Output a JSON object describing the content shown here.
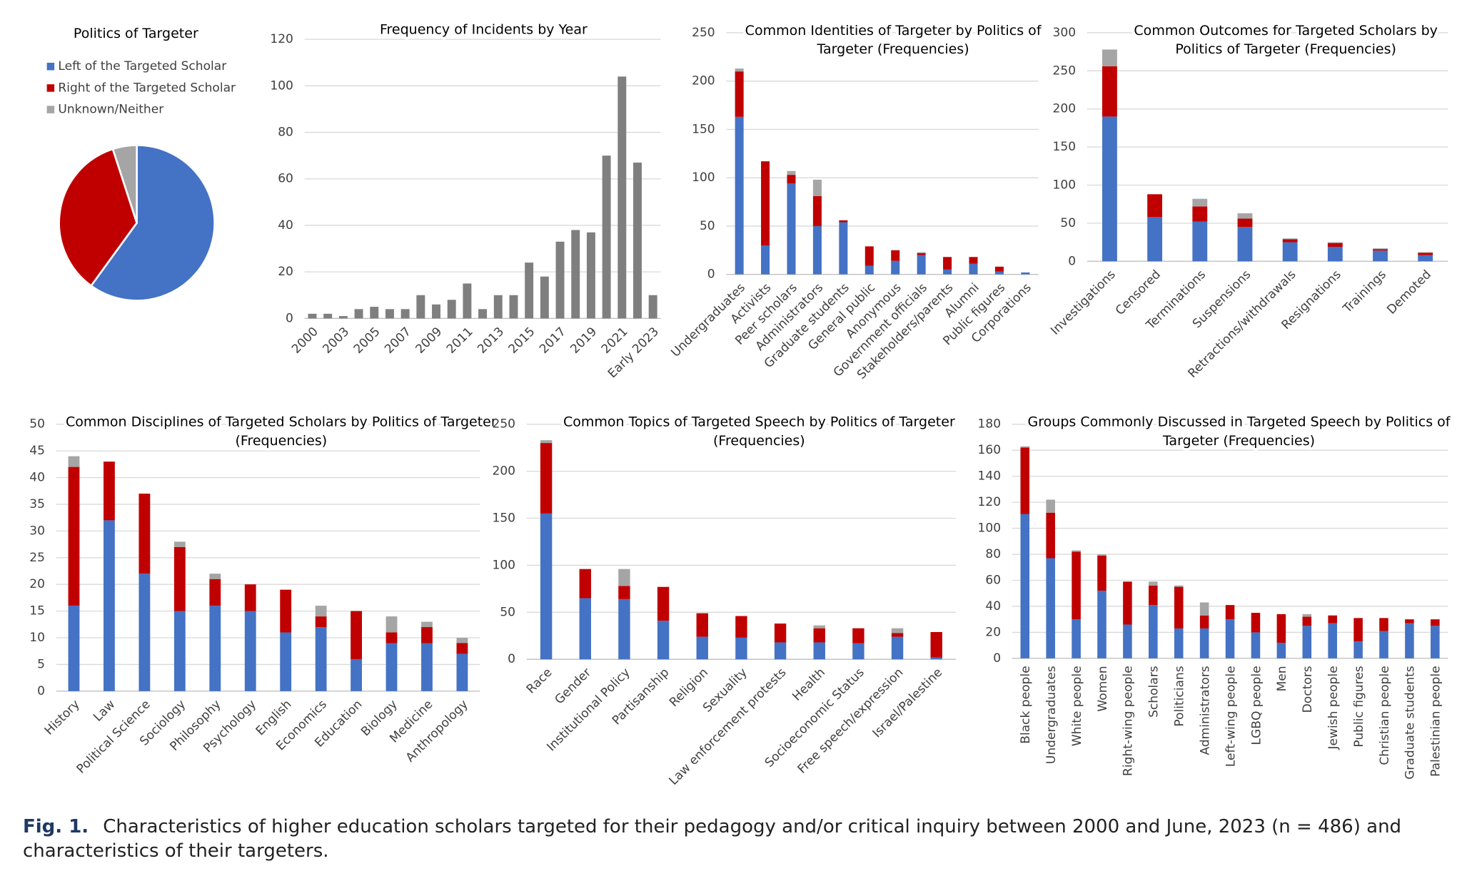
{
  "chart_data": [
    {
      "type": "pie",
      "title": "Politics of Targeter",
      "categories": [
        "Left of the Targeted Scholar",
        "Right of the Targeted Scholar",
        "Unknown/Neither"
      ],
      "values": [
        60,
        35,
        5
      ],
      "colors": [
        "#4472c4",
        "#c00000",
        "#a5a5a5"
      ]
    },
    {
      "type": "bar",
      "title": [
        "Frequency of Incidents by Year"
      ],
      "categories": [
        "2000",
        null,
        "2003",
        null,
        "2005",
        null,
        "2007",
        null,
        "2009",
        null,
        "2011",
        null,
        "2013",
        null,
        "2015",
        null,
        "2017",
        null,
        "2019",
        null,
        "2021",
        null,
        "Early 2023"
      ],
      "values": [
        2,
        2,
        1,
        4,
        5,
        4,
        4,
        10,
        6,
        8,
        15,
        4,
        10,
        10,
        24,
        18,
        33,
        38,
        37,
        70,
        104,
        67,
        10
      ],
      "color": "#7f7f7f",
      "ylim": [
        0,
        120
      ],
      "yticks": [
        0,
        20,
        40,
        60,
        80,
        100,
        120
      ],
      "grid": true
    },
    {
      "type": "stacked_bar",
      "title": [
        "Common Identities of Targeter by Politics of",
        "Targeter  (Frequencies)"
      ],
      "categories": [
        "Undergraduates",
        "Activists",
        "Peer scholars",
        "Administrators",
        "Graduate students",
        "General public",
        "Anonymous",
        "Government officials",
        "Stakeholders/parents",
        "Alumni",
        "Public figures",
        "Corporations"
      ],
      "series": [
        {
          "color": "#4472c4",
          "values": [
            163,
            30,
            94,
            50,
            54,
            9,
            14,
            20,
            5,
            11,
            3,
            2
          ]
        },
        {
          "color": "#c00000",
          "values": [
            47,
            87,
            9,
            31,
            2,
            20,
            11,
            2,
            13,
            7,
            5,
            0
          ]
        },
        {
          "color": "#a5a5a5",
          "values": [
            3,
            0,
            4,
            17,
            0,
            0,
            0,
            1,
            0,
            0,
            0,
            0
          ]
        }
      ],
      "ylim": [
        0,
        250
      ],
      "yticks": [
        0,
        50,
        100,
        150,
        200,
        250
      ],
      "grid": true
    },
    {
      "type": "stacked_bar",
      "title": [
        "Common Outcomes for Targeted Scholars by",
        "Politics of Targeter  (Frequencies)"
      ],
      "categories": [
        "Investigations",
        "Censored",
        "Terminations",
        "Suspensions",
        "Retractions/withdrawals",
        "Resignations",
        "Trainings",
        "Demoted"
      ],
      "series": [
        {
          "color": "#4472c4",
          "values": [
            190,
            58,
            52,
            45,
            25,
            19,
            14,
            8
          ]
        },
        {
          "color": "#c00000",
          "values": [
            66,
            30,
            20,
            11,
            4,
            5,
            2,
            3
          ]
        },
        {
          "color": "#a5a5a5",
          "values": [
            22,
            0,
            10,
            7,
            1,
            1,
            1,
            1
          ]
        }
      ],
      "ylim": [
        0,
        300
      ],
      "yticks": [
        0,
        50,
        100,
        150,
        200,
        250,
        300
      ],
      "grid": true
    },
    {
      "type": "stacked_bar",
      "title": [
        "Common Disciplines of Targeted Scholars by Politics of Targeter",
        "(Frequencies)"
      ],
      "categories": [
        "History",
        "Law",
        "Political Science",
        "Sociology",
        "Philosophy",
        "Psychology",
        "English",
        "Economics",
        "Education",
        "Biology",
        "Medicine",
        "Anthropology"
      ],
      "series": [
        {
          "color": "#4472c4",
          "values": [
            16,
            32,
            22,
            15,
            16,
            15,
            11,
            12,
            6,
            9,
            9,
            7
          ]
        },
        {
          "color": "#c00000",
          "values": [
            26,
            11,
            15,
            12,
            5,
            5,
            8,
            2,
            9,
            2,
            3,
            2
          ]
        },
        {
          "color": "#a5a5a5",
          "values": [
            2,
            0,
            0,
            1,
            1,
            0,
            0,
            2,
            0,
            3,
            1,
            1
          ]
        }
      ],
      "ylim": [
        0,
        50
      ],
      "yticks": [
        0,
        5,
        10,
        15,
        20,
        25,
        30,
        35,
        40,
        45,
        50
      ],
      "grid": true
    },
    {
      "type": "stacked_bar",
      "title": [
        "Common Topics of Targeted Speech by Politics of Targeter",
        "(Frequencies)"
      ],
      "categories": [
        "Race",
        "Gender",
        "Institutional Policy",
        "Partisanship",
        "Religion",
        "Sexuality",
        "Law enforcement protests",
        "Health",
        "Socioeconomic Status",
        "Free speech/expression",
        "Israel/Palestine"
      ],
      "series": [
        {
          "color": "#4472c4",
          "values": [
            155,
            65,
            64,
            41,
            24,
            23,
            18,
            18,
            17,
            24,
            2
          ]
        },
        {
          "color": "#c00000",
          "values": [
            75,
            31,
            14,
            36,
            25,
            23,
            20,
            15,
            16,
            4,
            27
          ]
        },
        {
          "color": "#a5a5a5",
          "values": [
            3,
            0,
            18,
            0,
            0,
            0,
            0,
            3,
            0,
            5,
            0
          ]
        }
      ],
      "ylim": [
        0,
        250
      ],
      "yticks": [
        0,
        50,
        100,
        150,
        200,
        250
      ],
      "grid": true
    },
    {
      "type": "stacked_bar",
      "title": [
        "Groups Commonly Discussed in Targeted Speech by Politics of",
        "Targeter  (Frequencies)"
      ],
      "categories": [
        "Black people",
        "Undergraduates",
        "White people",
        "Women",
        "Right-wing people",
        "Scholars",
        "Politicians",
        "Administrators",
        "Left-wing people",
        "LGBQ people",
        "Men",
        "Doctors",
        "Jewish people",
        "Public figures",
        "Christian people",
        "Graduate students",
        "Palestinian people"
      ],
      "series": [
        {
          "color": "#4472c4",
          "values": [
            111,
            77,
            30,
            52,
            26,
            41,
            23,
            23,
            30,
            20,
            12,
            25,
            27,
            13,
            21,
            27,
            25
          ]
        },
        {
          "color": "#c00000",
          "values": [
            51,
            35,
            52,
            27,
            33,
            15,
            32,
            10,
            11,
            15,
            22,
            7,
            6,
            18,
            10,
            3,
            5
          ]
        },
        {
          "color": "#a5a5a5",
          "values": [
            1,
            10,
            1,
            1,
            0,
            3,
            1,
            10,
            0,
            0,
            0,
            2,
            0,
            0,
            0,
            0,
            0
          ]
        }
      ],
      "ylim": [
        0,
        180
      ],
      "yticks": [
        0,
        20,
        40,
        60,
        80,
        100,
        120,
        140,
        160,
        180
      ],
      "grid": true
    }
  ],
  "caption": {
    "label": "Fig. 1.",
    "text": "Characteristics of higher education scholars targeted for their pedagogy and/or critical inquiry between 2000 and June, 2023 (n = 486) and characteristics of their targeters."
  }
}
